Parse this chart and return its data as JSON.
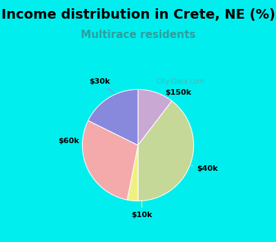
{
  "title": "Income distribution in Crete, NE (%)",
  "subtitle": "Multirace residents",
  "title_fontsize": 14,
  "subtitle_fontsize": 11,
  "background_outer": "#00EEEE",
  "background_inner": "#e8f2e8",
  "slice_labels": [
    "$150k",
    "$40k",
    "$10k",
    "$60k",
    "$30k"
  ],
  "slice_values": [
    10,
    38,
    3,
    28,
    17
  ],
  "slice_colors": [
    "#c9a8d4",
    "#c5d898",
    "#f0f080",
    "#f4aaaa",
    "#8888dd"
  ],
  "watermark": "City-Data.com"
}
